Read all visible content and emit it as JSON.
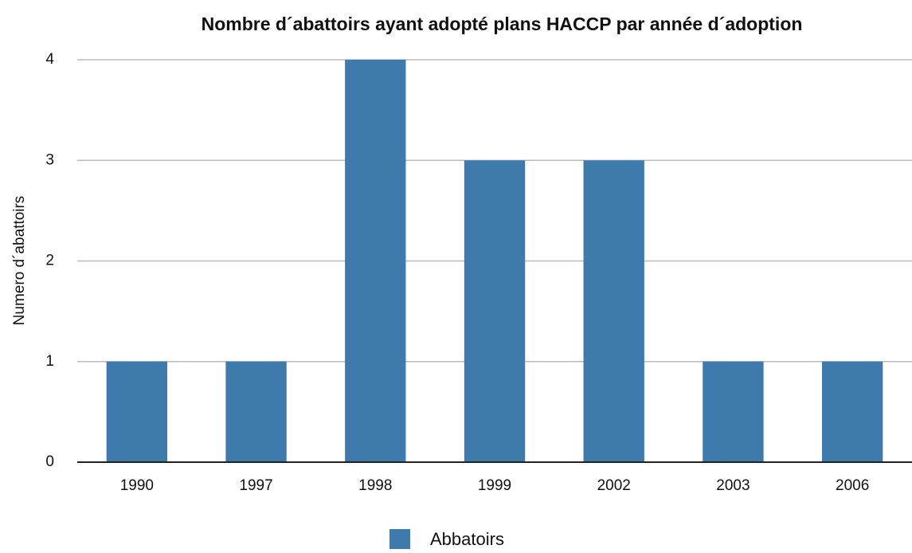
{
  "chart_data": {
    "type": "bar",
    "title": "Nombre d´abattoirs ayant adopté plans HACCP par année d´adoption",
    "y_label": "Numero d´abattoirs",
    "categories": [
      "1990",
      "1997",
      "1998",
      "1999",
      "2002",
      "2003",
      "2006"
    ],
    "series": [
      {
        "name": "Abbatoirs",
        "color": "#3f7aad",
        "values": [
          1,
          1,
          4,
          3,
          3,
          1,
          1
        ]
      }
    ],
    "ylim": [
      0,
      4
    ],
    "yticks": [
      0,
      1,
      2,
      3,
      4
    ],
    "grid": true,
    "legend": "bottom"
  }
}
